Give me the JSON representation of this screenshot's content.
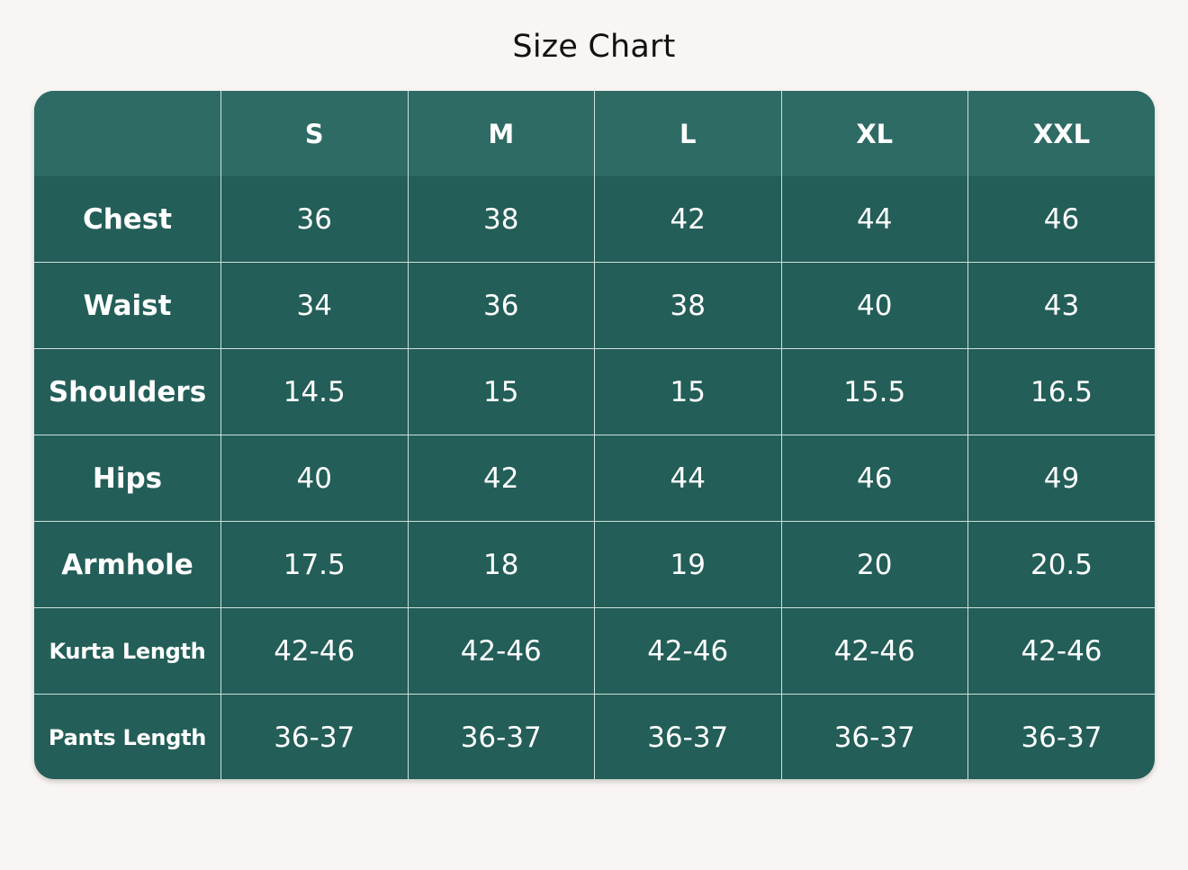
{
  "title": "Size Chart",
  "colors": {
    "background": "#f8f5f2",
    "table": "#235e58",
    "header": "#2e6b64",
    "gridline": "#cfe0dc",
    "text": "#ffffff"
  },
  "table": {
    "corner": "",
    "sizes": [
      "S",
      "M",
      "L",
      "XL",
      "XXL"
    ],
    "rows": [
      {
        "label": "Chest",
        "values": [
          "36",
          "38",
          "42",
          "44",
          "46"
        ]
      },
      {
        "label": "Waist",
        "values": [
          "34",
          "36",
          "38",
          "40",
          "43"
        ]
      },
      {
        "label": "Shoulders",
        "values": [
          "14.5",
          "15",
          "15",
          "15.5",
          "16.5"
        ]
      },
      {
        "label": "Hips",
        "values": [
          "40",
          "42",
          "44",
          "46",
          "49"
        ]
      },
      {
        "label": "Armhole",
        "values": [
          "17.5",
          "18",
          "19",
          "20",
          "20.5"
        ]
      },
      {
        "label": "Kurta Length",
        "values": [
          "42-46",
          "42-46",
          "42-46",
          "42-46",
          "42-46"
        ]
      },
      {
        "label": "Pants Length",
        "values": [
          "36-37",
          "36-37",
          "36-37",
          "36-37",
          "36-37"
        ]
      }
    ]
  }
}
